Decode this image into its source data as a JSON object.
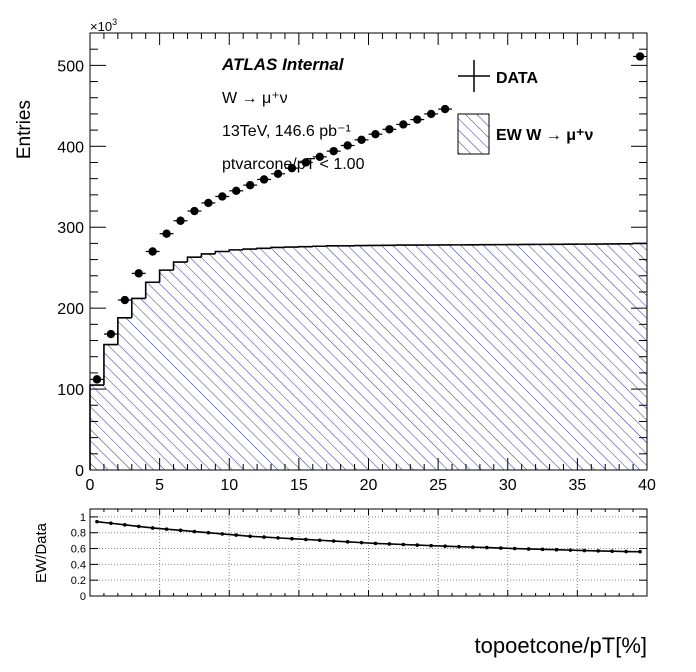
{
  "chart_data": [
    {
      "type": "step-histogram",
      "ylabel": "Entries",
      "y_multiplier_label": "×10",
      "y_multiplier_exp": "3",
      "xlim": [
        0,
        40
      ],
      "ylim": [
        0,
        540
      ],
      "x_ticks": [
        "0",
        "5",
        "10",
        "15",
        "20",
        "25",
        "30",
        "35",
        "40"
      ],
      "y_ticks": [
        "0",
        "100",
        "200",
        "300",
        "400",
        "500"
      ],
      "annotations": {
        "atlas": "ATLAS Internal",
        "process": "W → μ⁺ν",
        "energy": "13TeV, 146.6 pb⁻¹",
        "cut": "ptvarcone/pT < 1.00"
      },
      "legend": {
        "placement": "top-right",
        "data_label": "DATA",
        "mc_label": "EW W  → μ⁺ν"
      },
      "colors": {
        "mc_hatch": "#2b33a8",
        "data": "#000000"
      },
      "bins_low_edges": [
        0,
        1,
        2,
        3,
        4,
        5,
        6,
        7,
        8,
        9,
        10,
        11,
        12,
        13,
        14,
        15,
        16,
        17,
        18,
        19,
        20,
        21,
        22,
        23,
        24,
        25,
        26,
        27,
        28,
        29,
        30,
        31,
        32,
        33,
        34,
        35,
        36,
        37,
        38,
        39
      ],
      "mc_values": [
        105,
        155,
        188,
        212,
        232,
        247,
        257,
        263,
        267,
        270,
        272,
        273,
        274,
        275,
        275.5,
        276,
        276.5,
        277,
        277,
        277.3,
        277.5,
        277.7,
        277.9,
        278,
        278,
        278.1,
        278.2,
        278.3,
        278.4,
        278.5,
        278.6,
        278.7,
        278.8,
        278.9,
        279,
        279.1,
        279.2,
        279.3,
        279.5,
        280
      ],
      "data_x": [
        0.5,
        1.5,
        2.5,
        3.5,
        4.5,
        5.5,
        6.5,
        7.5,
        8.5,
        9.5,
        10.5,
        11.5,
        12.5,
        13.5,
        14.5,
        15.5,
        16.5,
        17.5,
        18.5,
        19.5,
        20.5,
        21.5,
        22.5,
        23.5,
        24.5,
        25.5,
        39.5
      ],
      "data_values": [
        112,
        168,
        210,
        243,
        270,
        292,
        308,
        320,
        330,
        338,
        345,
        352,
        359,
        366,
        373,
        380,
        387,
        394,
        401,
        408,
        415,
        421,
        427,
        433,
        440,
        446,
        511
      ]
    },
    {
      "type": "line",
      "ylabel": "EW/Data",
      "xlabel": "topoetcone/pT[%]",
      "xlim": [
        0,
        40
      ],
      "ylim": [
        0,
        1.1
      ],
      "y_ticks": [
        "0",
        "0.2",
        "0.4",
        "0.6",
        "0.8",
        "1"
      ],
      "x": [
        0.5,
        1.5,
        2.5,
        3.5,
        4.5,
        5.5,
        6.5,
        7.5,
        8.5,
        9.5,
        10.5,
        11.5,
        12.5,
        13.5,
        14.5,
        15.5,
        16.5,
        17.5,
        18.5,
        19.5,
        20.5,
        21.5,
        22.5,
        23.5,
        24.5,
        25.5,
        26.5,
        27.5,
        28.5,
        29.5,
        30.5,
        31.5,
        32.5,
        33.5,
        34.5,
        35.5,
        36.5,
        37.5,
        38.5,
        39.5
      ],
      "values": [
        0.94,
        0.92,
        0.9,
        0.88,
        0.86,
        0.845,
        0.83,
        0.815,
        0.8,
        0.785,
        0.77,
        0.755,
        0.745,
        0.735,
        0.725,
        0.715,
        0.705,
        0.695,
        0.685,
        0.675,
        0.665,
        0.658,
        0.651,
        0.644,
        0.637,
        0.63,
        0.624,
        0.618,
        0.612,
        0.606,
        0.6,
        0.595,
        0.59,
        0.585,
        0.58,
        0.575,
        0.57,
        0.566,
        0.562,
        0.56
      ]
    }
  ]
}
